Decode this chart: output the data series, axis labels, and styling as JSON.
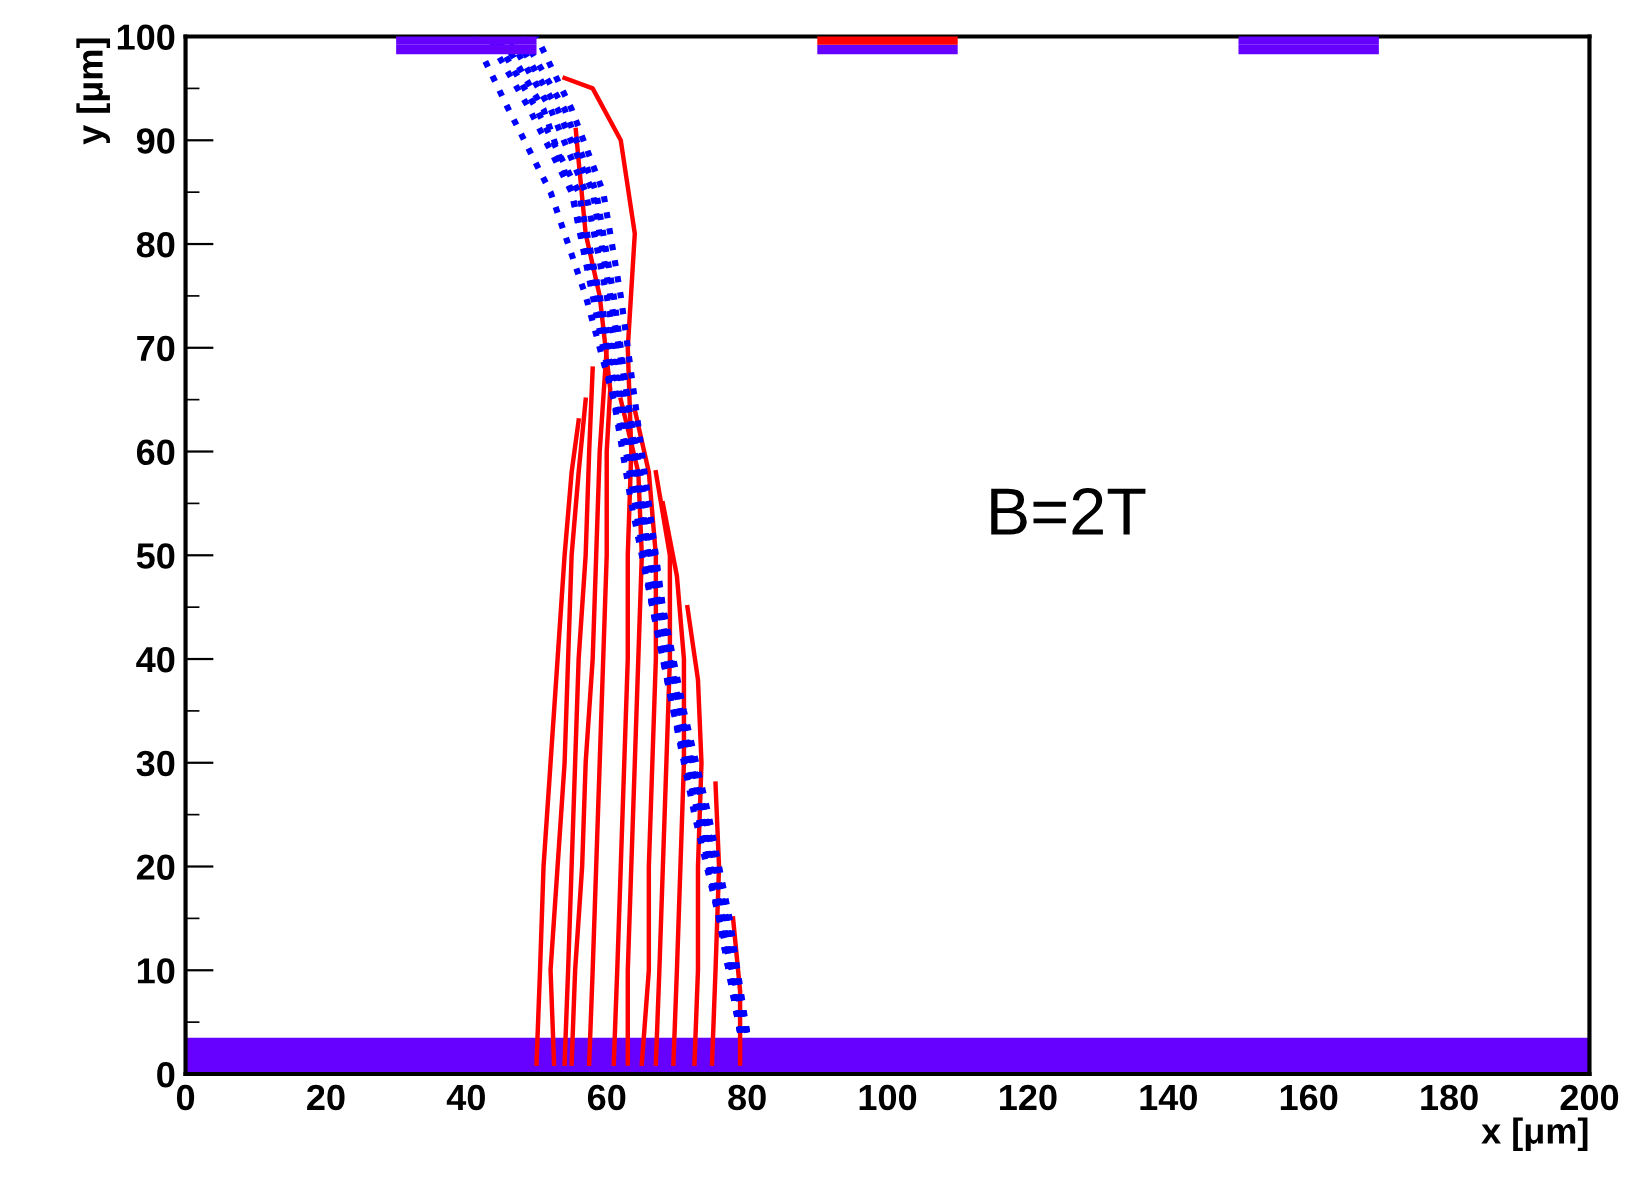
{
  "chart_data": {
    "type": "line",
    "xlabel": "x [μm]",
    "ylabel": "y [μm]",
    "xlim": [
      0,
      200
    ],
    "ylim": [
      0,
      100
    ],
    "xticks": [
      0,
      20,
      40,
      60,
      80,
      100,
      120,
      140,
      160,
      180,
      200
    ],
    "yticks": [
      0,
      10,
      20,
      30,
      40,
      50,
      60,
      70,
      80,
      90,
      100
    ],
    "grid": false,
    "legend": false,
    "annotations": [
      "B=2T"
    ],
    "bands": [
      {
        "axis": "y",
        "from": 0,
        "to": 3.5,
        "color": "#6600ff"
      }
    ],
    "series": [
      {
        "color": "#ff0000",
        "line_style": "solid",
        "x": [
          50,
          50.5,
          51,
          52,
          53,
          54,
          55,
          56
        ],
        "values": [
          1,
          10,
          20,
          30,
          40,
          50,
          58,
          63
        ]
      },
      {
        "color": "#ff0000",
        "line_style": "solid",
        "x": [
          52.5,
          52,
          53,
          54,
          54.5,
          55,
          56,
          57
        ],
        "values": [
          1,
          10,
          20,
          30,
          40,
          50,
          58,
          65
        ]
      },
      {
        "color": "#ff0000",
        "line_style": "solid",
        "x": [
          54,
          54.5,
          55,
          55.5,
          56,
          57,
          57.5,
          58
        ],
        "values": [
          1,
          10,
          20,
          30,
          40,
          50,
          60,
          68
        ]
      },
      {
        "color": "#ff0000",
        "line_style": "solid",
        "x": [
          55,
          55.5,
          56.5,
          57,
          58,
          58.5,
          59,
          60
        ],
        "values": [
          1,
          10,
          20,
          30,
          40,
          50,
          60,
          70
        ]
      },
      {
        "color": "#ff0000",
        "line_style": "solid",
        "x": [
          57.5,
          58,
          58.5,
          59,
          59.5,
          60,
          60,
          60.5,
          59,
          57,
          56,
          55.6
        ],
        "values": [
          1,
          10,
          20,
          30,
          40,
          50,
          60,
          66,
          75,
          81,
          88,
          91
        ]
      },
      {
        "color": "#ff0000",
        "line_style": "solid",
        "x": [
          61,
          61.5,
          62,
          62.5,
          63,
          63,
          63.5,
          63,
          64,
          62,
          58,
          54
        ],
        "values": [
          1,
          10,
          20,
          30,
          40,
          50,
          60,
          70,
          81,
          90,
          95,
          96
        ]
      },
      {
        "color": "#ff0000",
        "line_style": "solid",
        "x": [
          63,
          63,
          63.5,
          64,
          64.5,
          65,
          64.5,
          62
        ],
        "values": [
          1,
          10,
          20,
          30,
          40,
          50,
          58,
          65
        ]
      },
      {
        "color": "#ff0000",
        "line_style": "solid",
        "x": [
          65,
          66,
          66,
          66.5,
          67,
          67,
          66,
          64
        ],
        "values": [
          1,
          10,
          20,
          30,
          40,
          50,
          58,
          64
        ]
      },
      {
        "color": "#ff0000",
        "line_style": "solid",
        "x": [
          67,
          67.5,
          68,
          68.5,
          69,
          69,
          67
        ],
        "values": [
          1,
          10,
          20,
          30,
          40,
          50,
          58
        ]
      },
      {
        "color": "#ff0000",
        "line_style": "solid",
        "x": [
          69.5,
          70,
          70.5,
          71,
          71,
          70,
          68
        ],
        "values": [
          1,
          10,
          20,
          30,
          40,
          48,
          55
        ]
      },
      {
        "color": "#ff0000",
        "line_style": "solid",
        "x": [
          72.5,
          73,
          73,
          73.5,
          73,
          71.5
        ],
        "values": [
          1,
          10,
          20,
          30,
          38,
          45
        ]
      },
      {
        "color": "#ff0000",
        "line_style": "solid",
        "x": [
          75,
          75.5,
          76,
          75.5
        ],
        "values": [
          1,
          10,
          20,
          28
        ]
      },
      {
        "color": "#ff0000",
        "line_style": "solid",
        "x": [
          79,
          79,
          78
        ],
        "values": [
          1,
          8,
          15
        ]
      },
      {
        "color": "#0000ff",
        "line_style": "dotted",
        "x": [
          80,
          77,
          74,
          70.5,
          67.5,
          65,
          62.5,
          60,
          57,
          52,
          46
        ],
        "values": [
          4,
          15,
          25,
          35,
          45,
          55,
          65,
          75,
          85,
          93,
          100
        ]
      },
      {
        "color": "#0000ff",
        "line_style": "dotted",
        "x": [
          79.5,
          76.5,
          73.5,
          70,
          67,
          64.5,
          62,
          59,
          56,
          50,
          44
        ],
        "values": [
          4,
          15,
          25,
          35,
          45,
          55,
          65,
          75,
          85,
          93,
          100
        ]
      },
      {
        "color": "#0000ff",
        "line_style": "dotted",
        "x": [
          79,
          76,
          73,
          69.5,
          66.5,
          64,
          61.5,
          58.5,
          55,
          49,
          43
        ],
        "values": [
          4,
          15,
          25,
          35,
          45,
          55,
          65,
          75,
          85,
          93,
          100
        ]
      },
      {
        "color": "#0000ff",
        "line_style": "dotted",
        "x": [
          80,
          77.5,
          74.5,
          71,
          68,
          65.5,
          63,
          61,
          58.5,
          54,
          48
        ],
        "values": [
          4,
          15,
          25,
          35,
          45,
          55,
          65,
          75,
          85,
          93,
          100
        ]
      },
      {
        "color": "#0000ff",
        "line_style": "dotted",
        "x": [
          79.5,
          77,
          74,
          70.5,
          68,
          66,
          64,
          62,
          59.5,
          55,
          50
        ],
        "values": [
          4,
          15,
          25,
          35,
          45,
          55,
          65,
          75,
          85,
          93,
          100
        ]
      },
      {
        "color": "#0000ff",
        "line_style": "dotted",
        "x": [
          79,
          76.5,
          73,
          70,
          67,
          65,
          63,
          60.5,
          58,
          53,
          47
        ],
        "values": [
          4,
          15,
          25,
          35,
          45,
          55,
          65,
          75,
          85,
          93,
          100
        ]
      },
      {
        "color": "#0000ff",
        "line_style": "dotted",
        "x": [
          80,
          76,
          72.5,
          69.5,
          66.5,
          63.5,
          61,
          57,
          52,
          46,
          41
        ],
        "values": [
          4,
          15,
          25,
          35,
          45,
          55,
          65,
          75,
          85,
          93,
          100
        ]
      },
      {
        "color": "#0000ff",
        "line_style": "dotted",
        "x": [
          79,
          76,
          73.5,
          70.5,
          67.5,
          64.5,
          61,
          58,
          55,
          51,
          45
        ],
        "values": [
          4,
          15,
          25,
          35,
          45,
          55,
          65,
          75,
          85,
          93,
          100
        ]
      }
    ]
  }
}
